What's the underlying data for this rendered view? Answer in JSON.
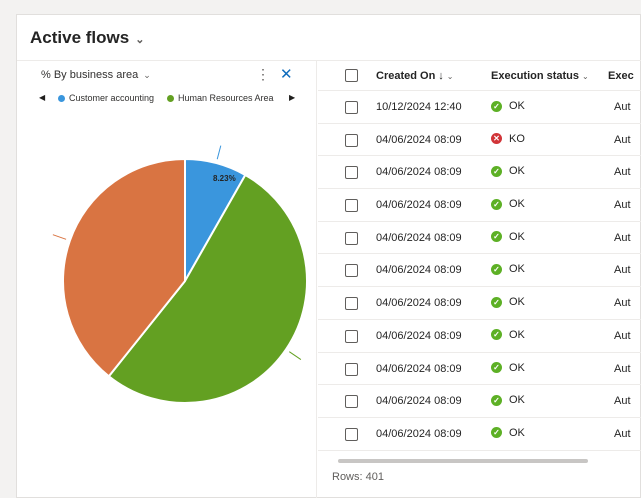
{
  "view": {
    "title": "Active flows"
  },
  "chart": {
    "selector_label": "% By business area",
    "legend": [
      {
        "name": "Customer accounting",
        "color": "#3a96dd"
      },
      {
        "name": "Human Resources Area",
        "color": "#63a022"
      }
    ],
    "pie_label": "8.23%"
  },
  "chart_data": {
    "type": "pie",
    "slices": [
      {
        "name": "Customer accounting",
        "value": 8.23,
        "color": "#3a96dd"
      },
      {
        "name": "Human Resources Area",
        "value": 52.5,
        "color": "#63a022"
      },
      {
        "name": "",
        "value": 39.27,
        "color": "#d97442"
      }
    ]
  },
  "grid": {
    "columns": {
      "created_on": "Created On",
      "sort_indicator": "↓",
      "execution_status": "Execution status",
      "execution_truncated": "Exec"
    },
    "rows": [
      {
        "created_on": "10/12/2024 12:40",
        "status": "OK",
        "execution": "Aut"
      },
      {
        "created_on": "04/06/2024 08:09",
        "status": "KO",
        "execution": "Aut"
      },
      {
        "created_on": "04/06/2024 08:09",
        "status": "OK",
        "execution": "Aut"
      },
      {
        "created_on": "04/06/2024 08:09",
        "status": "OK",
        "execution": "Aut"
      },
      {
        "created_on": "04/06/2024 08:09",
        "status": "OK",
        "execution": "Aut"
      },
      {
        "created_on": "04/06/2024 08:09",
        "status": "OK",
        "execution": "Aut"
      },
      {
        "created_on": "04/06/2024 08:09",
        "status": "OK",
        "execution": "Aut"
      },
      {
        "created_on": "04/06/2024 08:09",
        "status": "OK",
        "execution": "Aut"
      },
      {
        "created_on": "04/06/2024 08:09",
        "status": "OK",
        "execution": "Aut"
      },
      {
        "created_on": "04/06/2024 08:09",
        "status": "OK",
        "execution": "Aut"
      },
      {
        "created_on": "04/06/2024 08:09",
        "status": "OK",
        "execution": "Aut"
      }
    ],
    "rows_count": "Rows: 401",
    "status_colors": {
      "OK": "#5db025",
      "KO": "#d13438"
    }
  }
}
